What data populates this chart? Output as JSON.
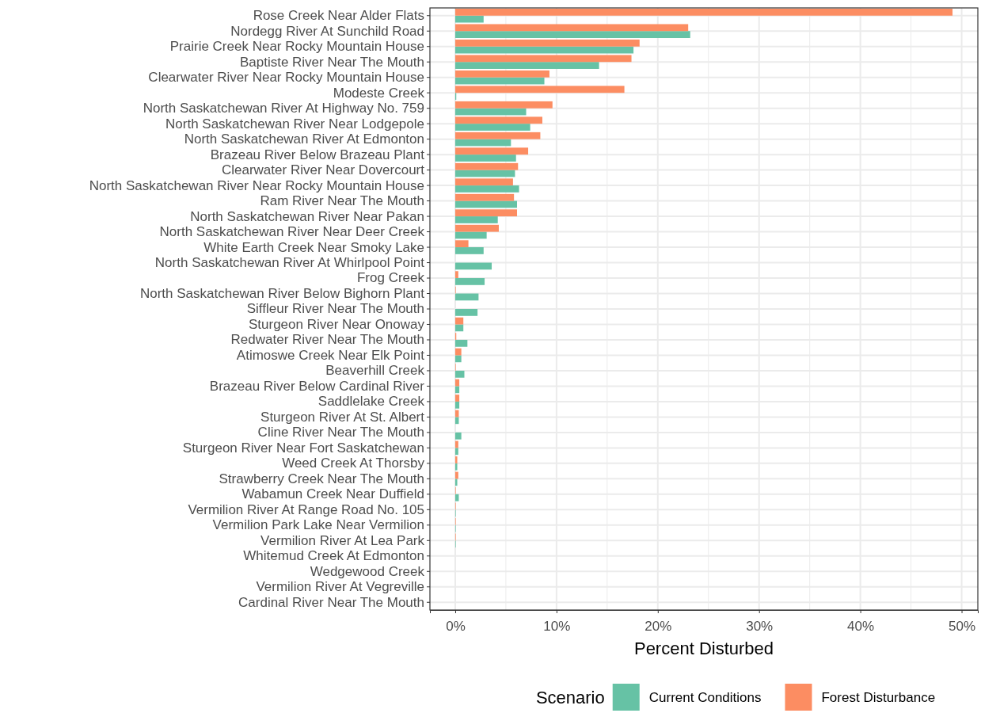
{
  "chart_data": {
    "type": "bar",
    "orientation": "horizontal",
    "xlabel": "Percent Disturbed",
    "legend_title": "Scenario",
    "legend": "bottom",
    "grid": true,
    "categories": [
      "Rose Creek Near Alder Flats",
      "Nordegg River At Sunchild Road",
      "Prairie Creek Near Rocky Mountain House",
      "Baptiste River Near The Mouth",
      "Clearwater River Near Rocky Mountain House",
      "Modeste Creek",
      "North Saskatchewan River At Highway No. 759",
      "North Saskatchewan River Near Lodgepole",
      "North Saskatchewan River At Edmonton",
      "Brazeau River Below Brazeau Plant",
      "Clearwater River Near Dovercourt",
      "North Saskatchewan River Near Rocky Mountain House",
      "Ram River Near The Mouth",
      "North Saskatchewan River Near Pakan",
      "North Saskatchewan River Near Deer Creek",
      "White Earth Creek Near Smoky Lake",
      "North Saskatchewan River At Whirlpool Point",
      "Frog Creek",
      "North Saskatchewan River Below Bighorn Plant",
      "Siffleur River Near The Mouth",
      "Sturgeon River Near Onoway",
      "Redwater River Near The Mouth",
      "Atimoswe Creek Near Elk Point",
      "Beaverhill Creek",
      "Brazeau River Below Cardinal River",
      "Saddlelake Creek",
      "Sturgeon River At St. Albert",
      "Cline River Near The Mouth",
      "Sturgeon River Near Fort Saskatchewan",
      "Weed Creek At Thorsby",
      "Strawberry Creek Near The Mouth",
      "Wabamun Creek Near Duffield",
      "Vermilion River At Range Road No. 105",
      "Vermilion Park Lake Near Vermilion",
      "Vermilion River At Lea Park",
      "Whitemud Creek At Edmonton",
      "Wedgewood Creek",
      "Vermilion River At Vegreville",
      "Cardinal River Near The Mouth"
    ],
    "series": [
      {
        "name": "Current Conditions",
        "color": "#66c2a5",
        "values": [
          2.8,
          23.2,
          17.6,
          14.2,
          8.8,
          0.1,
          7.0,
          7.4,
          5.5,
          6.0,
          5.9,
          6.3,
          6.1,
          4.2,
          3.1,
          2.8,
          3.6,
          2.9,
          2.3,
          2.2,
          0.8,
          1.2,
          0.6,
          0.9,
          0.4,
          0.4,
          0.35,
          0.6,
          0.3,
          0.2,
          0.2,
          0.35,
          0.05,
          0.05,
          0.05,
          0,
          0,
          0,
          0
        ]
      },
      {
        "name": "Forest Disturbance",
        "color": "#fc8d62",
        "values": [
          49.1,
          23.0,
          18.2,
          17.4,
          9.3,
          16.7,
          9.6,
          8.6,
          8.4,
          7.2,
          6.2,
          5.7,
          5.8,
          6.1,
          4.3,
          1.3,
          0,
          0.3,
          0.05,
          0,
          0.8,
          0.1,
          0.6,
          0.05,
          0.4,
          0.4,
          0.35,
          0,
          0.3,
          0.2,
          0.3,
          0.05,
          0.05,
          0.05,
          0.05,
          0,
          0,
          0,
          0
        ]
      }
    ],
    "xlim": [
      -2.5,
      51.6
    ],
    "xticks": [
      {
        "value": 0,
        "label": "0%"
      },
      {
        "value": 10,
        "label": "10%"
      },
      {
        "value": 20,
        "label": "20%"
      },
      {
        "value": 30,
        "label": "30%"
      },
      {
        "value": 40,
        "label": "40%"
      },
      {
        "value": 50,
        "label": "50%"
      }
    ]
  }
}
